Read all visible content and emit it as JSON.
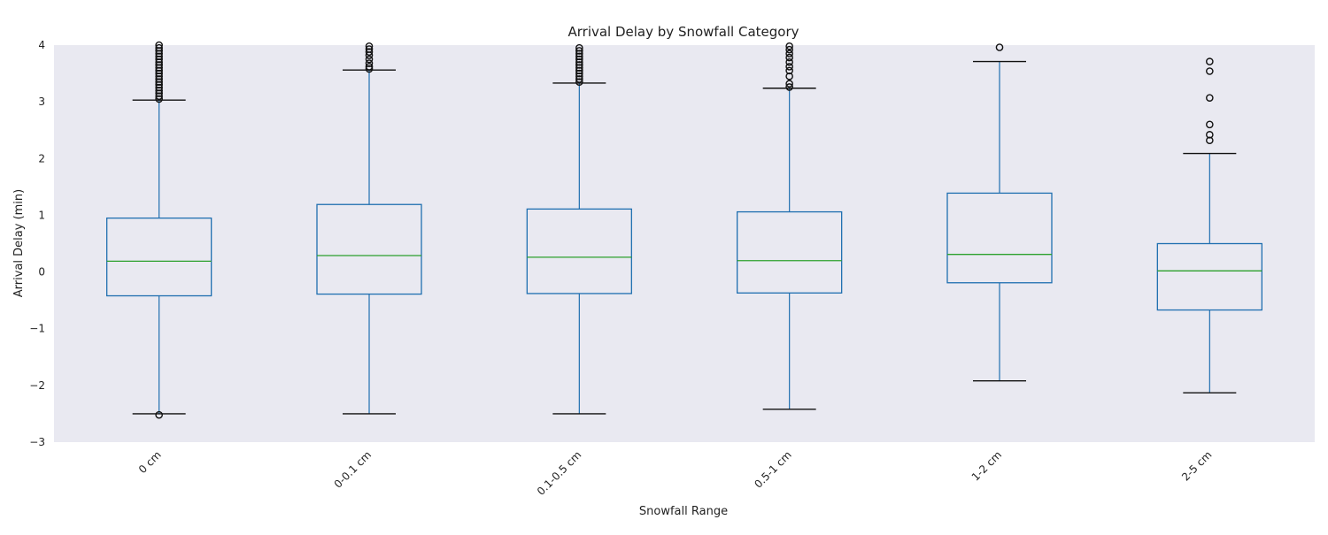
{
  "chart_data": {
    "type": "box",
    "title": "Arrival Delay by Snowfall Category",
    "xlabel": "Snowfall Range",
    "ylabel": "Arrival Delay (min)",
    "ylim": [
      -3,
      4
    ],
    "yticks": [
      -3,
      -2,
      -1,
      0,
      1,
      2,
      3,
      4
    ],
    "ytick_labels": [
      "−3",
      "−2",
      "−1",
      "0",
      "1",
      "2",
      "3",
      "4"
    ],
    "grid": false,
    "categories": [
      "0 cm",
      "0-0.1 cm",
      "0.1-0.5 cm",
      "0.5-1 cm",
      "1-2 cm",
      "2-5 cm"
    ],
    "boxes": [
      {
        "whisker_low": -2.5,
        "q1": -0.42,
        "median": 0.19,
        "q3": 0.95,
        "whisker_high": 3.03,
        "outliers": [
          3.05,
          3.1,
          3.15,
          3.2,
          3.25,
          3.3,
          3.35,
          3.4,
          3.45,
          3.5,
          3.55,
          3.6,
          3.65,
          3.7,
          3.75,
          3.8,
          3.85,
          3.9,
          3.95,
          4.0,
          -2.52
        ]
      },
      {
        "whisker_low": -2.5,
        "q1": -0.39,
        "median": 0.29,
        "q3": 1.19,
        "whisker_high": 3.56,
        "outliers": [
          3.58,
          3.62,
          3.68,
          3.75,
          3.82,
          3.88,
          3.93,
          3.98
        ]
      },
      {
        "whisker_low": -2.5,
        "q1": -0.38,
        "median": 0.26,
        "q3": 1.11,
        "whisker_high": 3.33,
        "outliers": [
          3.35,
          3.4,
          3.45,
          3.5,
          3.55,
          3.6,
          3.65,
          3.7,
          3.75,
          3.8,
          3.85,
          3.9,
          3.95
        ]
      },
      {
        "whisker_low": -2.42,
        "q1": -0.37,
        "median": 0.2,
        "q3": 1.06,
        "whisker_high": 3.24,
        "outliers": [
          3.26,
          3.32,
          3.45,
          3.55,
          3.62,
          3.7,
          3.78,
          3.85,
          3.92,
          3.98
        ]
      },
      {
        "whisker_low": -1.92,
        "q1": -0.19,
        "median": 0.31,
        "q3": 1.39,
        "whisker_high": 3.71,
        "outliers": [
          3.96
        ]
      },
      {
        "whisker_low": -2.13,
        "q1": -0.67,
        "median": 0.02,
        "q3": 0.5,
        "whisker_high": 2.09,
        "outliers": [
          2.32,
          2.42,
          2.6,
          3.07,
          3.54,
          3.71
        ]
      }
    ],
    "colors": {
      "plot_bg": "#e9e9f1",
      "box": "#1f6fb0",
      "median": "#2ca02c",
      "cap": "#111111",
      "flier": "#111111"
    }
  }
}
